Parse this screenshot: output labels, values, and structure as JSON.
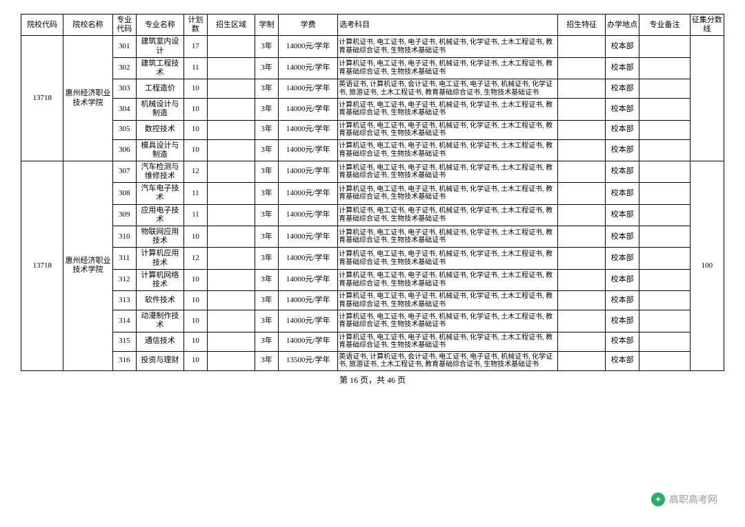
{
  "headers": {
    "code": "院校代码",
    "school": "院校名称",
    "majorcode": "专业代码",
    "major": "专业名称",
    "plan": "计划数",
    "region": "招生区域",
    "duration": "学制",
    "fee": "学费",
    "subjects": "选考科目",
    "feature": "招生特征",
    "location": "办学地点",
    "remark": "专业备注",
    "score": "征集分数线"
  },
  "group1": {
    "code": "13718",
    "school": "惠州经济职业技术学院",
    "rows": [
      {
        "majorcode": "301",
        "major": "建筑室内设计",
        "plan": "17",
        "duration": "3年",
        "fee": "14000元/学年",
        "subjects": "计算机证书, 电工证书, 电子证书, 机械证书, 化学证书, 土木工程证书, 教育基础综合证书, 生物技术基础证书",
        "location": "校本部"
      },
      {
        "majorcode": "302",
        "major": "建筑工程技术",
        "plan": "11",
        "duration": "3年",
        "fee": "14000元/学年",
        "subjects": "计算机证书, 电工证书, 电子证书, 机械证书, 化学证书, 土木工程证书, 教育基础综合证书, 生物技术基础证书",
        "location": "校本部"
      },
      {
        "majorcode": "303",
        "major": "工程造价",
        "plan": "10",
        "duration": "3年",
        "fee": "14000元/学年",
        "subjects": "英语证书, 计算机证书, 会计证书, 电工证书, 电子证书, 机械证书, 化学证书, 旅游证书, 土木工程证书, 教育基础综合证书, 生物技术基础证书",
        "location": "校本部"
      },
      {
        "majorcode": "304",
        "major": "机械设计与制造",
        "plan": "10",
        "duration": "3年",
        "fee": "14000元/学年",
        "subjects": "计算机证书, 电工证书, 电子证书, 机械证书, 化学证书, 土木工程证书, 教育基础综合证书, 生物技术基础证书",
        "location": "校本部"
      },
      {
        "majorcode": "305",
        "major": "数控技术",
        "plan": "10",
        "duration": "3年",
        "fee": "14000元/学年",
        "subjects": "计算机证书, 电工证书, 电子证书, 机械证书, 化学证书, 土木工程证书, 教育基础综合证书, 生物技术基础证书",
        "location": "校本部"
      },
      {
        "majorcode": "306",
        "major": "模具设计与制造",
        "plan": "10",
        "duration": "3年",
        "fee": "14000元/学年",
        "subjects": "计算机证书, 电工证书, 电子证书, 机械证书, 化学证书, 土木工程证书, 教育基础综合证书, 生物技术基础证书",
        "location": "校本部"
      }
    ]
  },
  "group2": {
    "code": "13718",
    "school": "惠州经济职业技术学院",
    "score": "100",
    "rows": [
      {
        "majorcode": "307",
        "major": "汽车检测与维修技术",
        "plan": "12",
        "duration": "3年",
        "fee": "14000元/学年",
        "subjects": "计算机证书, 电工证书, 电子证书, 机械证书, 化学证书, 土木工程证书, 教育基础综合证书, 生物技术基础证书",
        "location": "校本部"
      },
      {
        "majorcode": "308",
        "major": "汽车电子技术",
        "plan": "11",
        "duration": "3年",
        "fee": "14000元/学年",
        "subjects": "计算机证书, 电工证书, 电子证书, 机械证书, 化学证书, 土木工程证书, 教育基础综合证书, 生物技术基础证书",
        "location": "校本部"
      },
      {
        "majorcode": "309",
        "major": "应用电子技术",
        "plan": "11",
        "duration": "3年",
        "fee": "14000元/学年",
        "subjects": "计算机证书, 电工证书, 电子证书, 机械证书, 化学证书, 土木工程证书, 教育基础综合证书, 生物技术基础证书",
        "location": "校本部"
      },
      {
        "majorcode": "310",
        "major": "物联网应用技术",
        "plan": "10",
        "duration": "3年",
        "fee": "14000元/学年",
        "subjects": "计算机证书, 电工证书, 电子证书, 机械证书, 化学证书, 土木工程证书, 教育基础综合证书, 生物技术基础证书",
        "location": "校本部"
      },
      {
        "majorcode": "311",
        "major": "计算机应用技术",
        "plan": "12",
        "duration": "3年",
        "fee": "14000元/学年",
        "subjects": "计算机证书, 电工证书, 电子证书, 机械证书, 化学证书, 土木工程证书, 教育基础综合证书, 生物技术基础证书",
        "location": "校本部"
      },
      {
        "majorcode": "312",
        "major": "计算机网络技术",
        "plan": "10",
        "duration": "3年",
        "fee": "14000元/学年",
        "subjects": "计算机证书, 电工证书, 电子证书, 机械证书, 化学证书, 土木工程证书, 教育基础综合证书, 生物技术基础证书",
        "location": "校本部"
      },
      {
        "majorcode": "313",
        "major": "软件技术",
        "plan": "10",
        "duration": "3年",
        "fee": "14000元/学年",
        "subjects": "计算机证书, 电工证书, 电子证书, 机械证书, 化学证书, 土木工程证书, 教育基础综合证书, 生物技术基础证书",
        "location": "校本部"
      },
      {
        "majorcode": "314",
        "major": "动漫制作技术",
        "plan": "10",
        "duration": "3年",
        "fee": "14000元/学年",
        "subjects": "计算机证书, 电工证书, 电子证书, 机械证书, 化学证书, 土木工程证书, 教育基础综合证书, 生物技术基础证书",
        "location": "校本部"
      },
      {
        "majorcode": "315",
        "major": "通信技术",
        "plan": "10",
        "duration": "3年",
        "fee": "14000元/学年",
        "subjects": "计算机证书, 电工证书, 电子证书, 机械证书, 化学证书, 土木工程证书, 教育基础综合证书, 生物技术基础证书",
        "location": "校本部"
      },
      {
        "majorcode": "316",
        "major": "投资与理财",
        "plan": "10",
        "duration": "3年",
        "fee": "13500元/学年",
        "subjects": "英语证书, 计算机证书, 会计证书, 电工证书, 电子证书, 机械证书, 化学证书, 旅游证书, 土木工程证书, 教育基础综合证书, 生物技术基础证书",
        "location": "校本部"
      }
    ]
  },
  "footer": "第 16 页，共 46 页",
  "watermark": "高职高考网"
}
